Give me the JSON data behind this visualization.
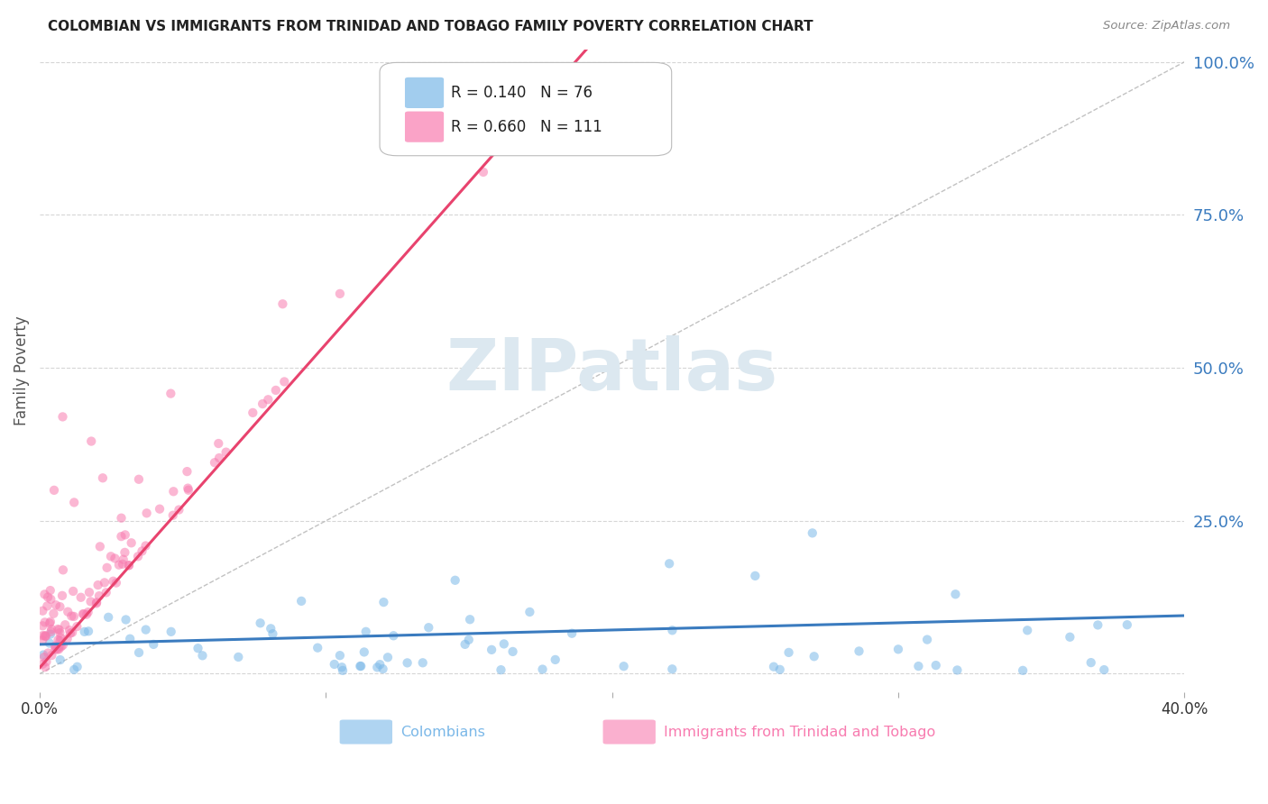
{
  "title": "COLOMBIAN VS IMMIGRANTS FROM TRINIDAD AND TOBAGO FAMILY POVERTY CORRELATION CHART",
  "source": "Source: ZipAtlas.com",
  "ylabel": "Family Poverty",
  "x_min": 0.0,
  "x_max": 0.4,
  "y_min": -0.03,
  "y_max": 1.02,
  "colombian_color": "#7bb8e8",
  "trinidad_color": "#f87cb0",
  "diagonal_color": "#cccccc",
  "blue_line_color": "#3a7bbf",
  "pink_line_color": "#e8436e",
  "watermark_color": "#dce8f0",
  "legend_label_colombian": "Colombians",
  "legend_label_trinidad": "Immigrants from Trinidad and Tobago",
  "background_color": "#ffffff",
  "grid_color": "#cccccc",
  "title_color": "#222222",
  "axis_label_color": "#555555",
  "right_tick_color": "#3a7bbf",
  "legend_text_color": "#222222"
}
